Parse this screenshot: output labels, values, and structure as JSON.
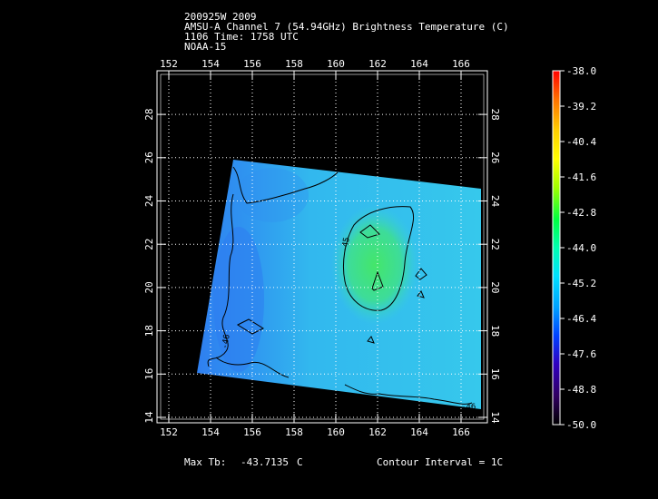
{
  "header": {
    "line1": "200925W 2009",
    "line2": "AMSU-A Channel 7 (54.94GHz) Brightness Temperature (C)",
    "line3": "1106 Time: 1758 UTC",
    "line4": "NOAA-15"
  },
  "footer": {
    "max_label": "Max Tb:",
    "max_value": "-43.7135",
    "max_unit": "C",
    "contour_interval": "Contour Interval = 1C"
  },
  "map": {
    "lon_ticks": [
      "152",
      "154",
      "156",
      "158",
      "160",
      "162",
      "164",
      "166"
    ],
    "lat_ticks": [
      "14",
      "16",
      "18",
      "20",
      "22",
      "24",
      "26",
      "28"
    ],
    "contour_labels": [
      "-45",
      "-46",
      "-46"
    ],
    "colors": {
      "background": "#000000",
      "swath_base": "#35c6ee",
      "swath_west": "#2f86f0",
      "warm_core": "#3fe07a",
      "contour": "#000000"
    }
  },
  "colorbar": {
    "labels": [
      "-38.0",
      "-39.2",
      "-40.4",
      "-41.6",
      "-42.8",
      "-44.0",
      "-45.2",
      "-46.4",
      "-47.6",
      "-48.8",
      "-50.0"
    ],
    "gradient": [
      "#ff0000",
      "#ff8000",
      "#ffd000",
      "#ffff00",
      "#a0ff00",
      "#00ff40",
      "#00ffcc",
      "#00c8ff",
      "#0060ff",
      "#0000ff",
      "#4000a0",
      "#200040",
      "#000000"
    ]
  }
}
